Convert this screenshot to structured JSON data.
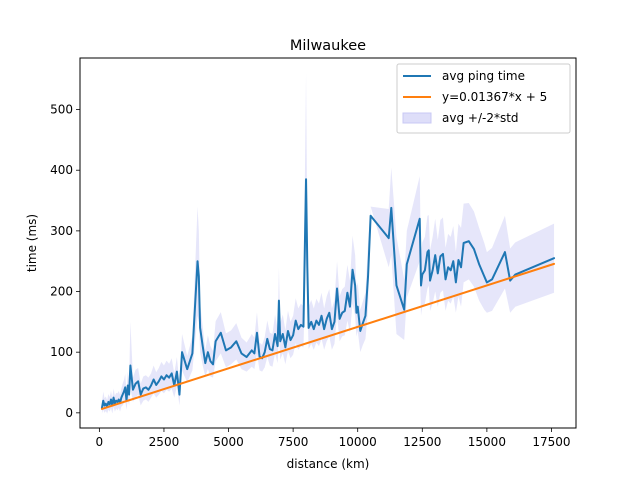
{
  "chart_data": {
    "type": "line",
    "title": "Milwaukee",
    "xlabel": "distance (km)",
    "ylabel": "time (ms)",
    "xlim": [
      -750,
      18450
    ],
    "ylim": [
      -25,
      585
    ],
    "xticks": [
      0,
      2500,
      5000,
      7500,
      10000,
      12500,
      15000,
      17500
    ],
    "yticks": [
      0,
      100,
      200,
      300,
      400,
      500
    ],
    "grid": false,
    "legend_position": "top-right",
    "legend": [
      {
        "label": "avg ping time",
        "kind": "line",
        "color": "#1f77b4"
      },
      {
        "label": "y=0.01367*x + 5",
        "kind": "line",
        "color": "#ff7f0e"
      },
      {
        "label": "avg +/-2*std",
        "kind": "band",
        "color": "#c8c8f5"
      }
    ],
    "series": [
      {
        "name": "avg ping time",
        "color": "#1f77b4",
        "x": [
          100,
          150,
          200,
          250,
          300,
          350,
          400,
          450,
          500,
          550,
          600,
          650,
          700,
          750,
          800,
          850,
          900,
          950,
          1000,
          1050,
          1100,
          1150,
          1200,
          1300,
          1400,
          1500,
          1600,
          1700,
          1800,
          1900,
          2000,
          2100,
          2200,
          2300,
          2400,
          2500,
          2600,
          2700,
          2800,
          2900,
          3000,
          3100,
          3200,
          3400,
          3600,
          3800,
          3850,
          3900,
          4000,
          4100,
          4200,
          4300,
          4400,
          4500,
          4700,
          4900,
          5100,
          5300,
          5500,
          5700,
          5900,
          6000,
          6100,
          6200,
          6300,
          6400,
          6500,
          6600,
          6700,
          6800,
          6900,
          6950,
          7000,
          7100,
          7200,
          7300,
          7400,
          7500,
          7600,
          7700,
          7800,
          7900,
          8000,
          8050,
          8100,
          8200,
          8300,
          8400,
          8500,
          8600,
          8700,
          8800,
          8900,
          9000,
          9100,
          9200,
          9300,
          9400,
          9500,
          9600,
          9700,
          9800,
          9900,
          9950,
          10000,
          10100,
          10200,
          10300,
          10400,
          10500,
          11200,
          11300,
          11500,
          11800,
          11900,
          12400,
          12450,
          12500,
          12600,
          12700,
          12750,
          12800,
          12900,
          13000,
          13100,
          13200,
          13300,
          13400,
          13500,
          13600,
          13700,
          13800,
          13900,
          14000,
          14100,
          14300,
          14500,
          14700,
          14900,
          15000,
          15200,
          15700,
          15900,
          16100,
          17600
        ],
        "y": [
          8,
          20,
          12,
          15,
          10,
          18,
          14,
          22,
          12,
          25,
          15,
          20,
          18,
          22,
          16,
          25,
          30,
          35,
          42,
          20,
          45,
          30,
          78,
          38,
          48,
          52,
          30,
          40,
          42,
          38,
          45,
          55,
          46,
          52,
          60,
          55,
          62,
          58,
          65,
          45,
          68,
          30,
          100,
          72,
          98,
          250,
          225,
          140,
          110,
          82,
          100,
          85,
          80,
          118,
          132,
          103,
          108,
          118,
          98,
          92,
          103,
          98,
          132,
          93,
          90,
          100,
          122,
          105,
          103,
          130,
          110,
          185,
          118,
          130,
          108,
          135,
          120,
          128,
          152,
          138,
          145,
          142,
          385,
          240,
          140,
          150,
          138,
          152,
          145,
          160,
          138,
          155,
          165,
          138,
          150,
          205,
          155,
          165,
          168,
          198,
          175,
          236,
          210,
          165,
          175,
          135,
          148,
          160,
          225,
          325,
          288,
          338,
          210,
          170,
          245,
          320,
          210,
          228,
          235,
          265,
          268,
          218,
          235,
          260,
          230,
          258,
          262,
          220,
          240,
          235,
          250,
          215,
          252,
          240,
          280,
          283,
          270,
          245,
          225,
          215,
          220,
          265,
          218,
          228,
          255
        ],
        "lower": [
          -1,
          5,
          0,
          3,
          -1,
          5,
          2,
          8,
          -1,
          10,
          2,
          7,
          4,
          8,
          2,
          10,
          12,
          16,
          20,
          5,
          22,
          12,
          40,
          18,
          25,
          30,
          12,
          20,
          22,
          18,
          25,
          32,
          25,
          30,
          36,
          32,
          38,
          35,
          40,
          25,
          44,
          12,
          70,
          50,
          70,
          160,
          150,
          100,
          78,
          60,
          72,
          60,
          58,
          85,
          98,
          75,
          80,
          88,
          72,
          68,
          76,
          72,
          98,
          70,
          68,
          75,
          92,
          78,
          76,
          98,
          82,
          130,
          88,
          98,
          80,
          102,
          90,
          96,
          115,
          104,
          110,
          108,
          270,
          180,
          105,
          114,
          104,
          116,
          110,
          122,
          104,
          118,
          126,
          104,
          114,
          160,
          118,
          126,
          128,
          152,
          132,
          180,
          160,
          126,
          135,
          100,
          112,
          122,
          170,
          340,
          240,
          260,
          130,
          120,
          190,
          250,
          160,
          175,
          180,
          205,
          210,
          168,
          180,
          200,
          175,
          198,
          202,
          168,
          185,
          180,
          192,
          165,
          192,
          175,
          215,
          220,
          208,
          185,
          170,
          165,
          168,
          205,
          165,
          175,
          198
        ],
        "upper": [
          17,
          35,
          24,
          27,
          21,
          31,
          26,
          36,
          25,
          40,
          28,
          33,
          32,
          36,
          30,
          40,
          48,
          54,
          64,
          35,
          68,
          48,
          150,
          58,
          71,
          74,
          48,
          60,
          62,
          58,
          65,
          78,
          67,
          74,
          84,
          78,
          86,
          81,
          90,
          65,
          92,
          48,
          130,
          94,
          126,
          340,
          300,
          180,
          142,
          104,
          128,
          110,
          102,
          151,
          166,
          131,
          136,
          148,
          124,
          116,
          130,
          124,
          166,
          116,
          112,
          125,
          152,
          132,
          130,
          162,
          138,
          240,
          148,
          162,
          136,
          168,
          150,
          160,
          189,
          172,
          180,
          176,
          560,
          300,
          175,
          186,
          172,
          188,
          180,
          198,
          172,
          192,
          204,
          172,
          186,
          250,
          192,
          204,
          208,
          244,
          218,
          292,
          260,
          204,
          215,
          170,
          184,
          198,
          280,
          340,
          336,
          404,
          290,
          220,
          300,
          390,
          260,
          281,
          290,
          325,
          326,
          268,
          290,
          320,
          285,
          318,
          322,
          272,
          295,
          290,
          308,
          265,
          312,
          305,
          345,
          346,
          332,
          305,
          280,
          265,
          272,
          325,
          271,
          281,
          312
        ]
      },
      {
        "name": "y=0.01367*x + 5",
        "color": "#ff7f0e",
        "x": [
          100,
          17600
        ],
        "y": [
          6.367,
          245.592
        ]
      }
    ]
  }
}
